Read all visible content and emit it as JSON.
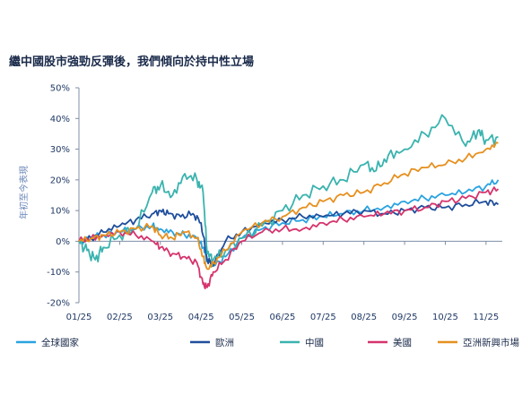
{
  "chart_data": {
    "type": "line",
    "title": "繼中國股市強勁反彈後，我們傾向於持中性立場",
    "ylabel": "年初至今表現",
    "xlabel": "",
    "ylim": [
      -20,
      50
    ],
    "yticks": [
      -20,
      -10,
      0,
      10,
      20,
      30,
      40,
      50
    ],
    "ytick_labels": [
      "-20%",
      "-10%",
      "0%",
      "10%",
      "20%",
      "30%",
      "40%",
      "50%"
    ],
    "x_tick_labels": [
      "01/25",
      "02/25",
      "03/25",
      "04/25",
      "05/25",
      "06/25",
      "07/25",
      "08/25",
      "09/25",
      "10/25",
      "11/25"
    ],
    "x_tick_positions": [
      1,
      2,
      3,
      4,
      5,
      6,
      7,
      8,
      9,
      10,
      11
    ],
    "x_range": [
      1,
      11.4
    ],
    "grid": false,
    "legend_position": "bottom",
    "series": [
      {
        "name": "全球國家",
        "color": "#2aa3e0",
        "x": [
          1.0,
          1.3,
          1.6,
          2.0,
          2.4,
          2.8,
          3.0,
          3.3,
          3.6,
          3.9,
          4.05,
          4.15,
          4.3,
          4.6,
          5.0,
          5.5,
          6.0,
          6.5,
          7.0,
          7.5,
          8.0,
          8.5,
          9.0,
          9.5,
          10.0,
          10.5,
          11.0,
          11.3
        ],
        "values": [
          0,
          1,
          2,
          3,
          4,
          5,
          4,
          3,
          2,
          1,
          -2,
          -6,
          -8,
          -5,
          1,
          4,
          6,
          7,
          8,
          9,
          10,
          11,
          13,
          14,
          15,
          16,
          18,
          20
        ]
      },
      {
        "name": "歐洲",
        "color": "#1f4e9c",
        "x": [
          1.0,
          1.3,
          1.6,
          2.0,
          2.4,
          2.8,
          3.0,
          3.2,
          3.5,
          3.8,
          4.0,
          4.15,
          4.3,
          4.6,
          5.0,
          5.5,
          6.0,
          6.5,
          7.0,
          7.5,
          8.0,
          8.5,
          9.0,
          9.5,
          10.0,
          10.5,
          11.0,
          11.3
        ],
        "values": [
          0,
          1,
          3,
          5,
          7,
          9,
          10,
          9,
          8,
          9,
          6,
          -6,
          -8,
          0,
          3,
          6,
          7,
          8,
          8,
          9,
          10,
          9,
          10,
          11,
          11,
          12,
          13,
          12
        ]
      },
      {
        "name": "中國",
        "color": "#3ab3ae",
        "x": [
          1.0,
          1.2,
          1.4,
          1.6,
          2.0,
          2.4,
          2.8,
          3.0,
          3.3,
          3.6,
          3.9,
          4.05,
          4.15,
          4.3,
          4.6,
          5.0,
          5.5,
          6.0,
          6.5,
          7.0,
          7.5,
          8.0,
          8.3,
          8.6,
          9.0,
          9.5,
          10.0,
          10.5,
          10.8,
          11.0,
          11.3
        ],
        "values": [
          0,
          -3,
          -6,
          -2,
          2,
          4,
          16,
          18,
          15,
          22,
          20,
          16,
          -4,
          -6,
          -3,
          1,
          5,
          10,
          15,
          18,
          20,
          25,
          23,
          28,
          30,
          35,
          40,
          31,
          36,
          33,
          34
        ]
      },
      {
        "name": "美國",
        "color": "#d6336c",
        "x": [
          1.0,
          1.3,
          1.6,
          2.0,
          2.4,
          2.8,
          3.0,
          3.3,
          3.6,
          3.9,
          4.05,
          4.15,
          4.3,
          4.6,
          5.0,
          5.5,
          6.0,
          6.5,
          7.0,
          7.5,
          8.0,
          8.5,
          9.0,
          9.5,
          10.0,
          10.5,
          11.0,
          11.3
        ],
        "values": [
          0,
          1,
          2,
          3,
          2,
          0,
          -2,
          -4,
          -5,
          -7,
          -14,
          -15,
          -10,
          -6,
          0,
          3,
          4,
          4,
          6,
          7,
          8,
          9,
          10,
          11,
          13,
          14,
          16,
          17
        ]
      },
      {
        "name": "亞洲新興市場",
        "color": "#e6901f",
        "x": [
          1.0,
          1.3,
          1.6,
          2.0,
          2.4,
          2.8,
          3.0,
          3.3,
          3.6,
          3.9,
          4.05,
          4.15,
          4.3,
          4.6,
          5.0,
          5.5,
          6.0,
          6.5,
          7.0,
          7.5,
          8.0,
          8.5,
          9.0,
          9.5,
          10.0,
          10.5,
          11.0,
          11.3
        ],
        "values": [
          0,
          1,
          2,
          3,
          4,
          5,
          2,
          1,
          3,
          1,
          -5,
          -9,
          -7,
          -3,
          3,
          6,
          8,
          11,
          13,
          15,
          16,
          19,
          22,
          24,
          25,
          27,
          30,
          32
        ]
      }
    ]
  }
}
